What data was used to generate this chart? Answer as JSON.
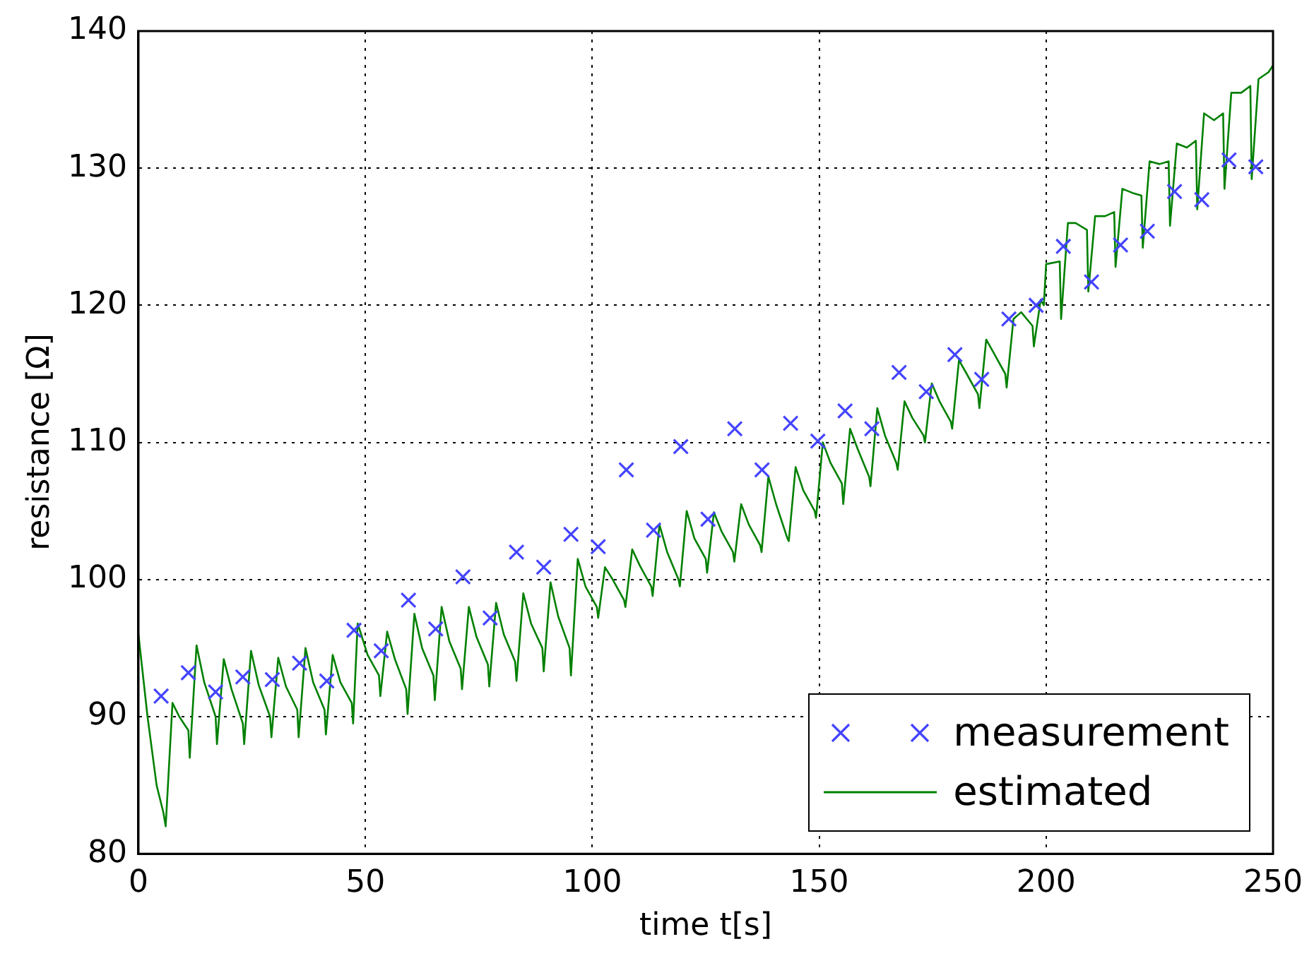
{
  "chart_data": {
    "type": "scatter",
    "xlabel": "time t[s]",
    "ylabel": "resistance [Ω]",
    "xlim": [
      0,
      250
    ],
    "ylim": [
      80,
      140
    ],
    "xticks": [
      0,
      50,
      100,
      150,
      200,
      250
    ],
    "yticks": [
      80,
      90,
      100,
      110,
      120,
      130,
      140
    ],
    "grid": true,
    "legend": "bottom right",
    "x": [
      5,
      11,
      17,
      23,
      29.5,
      35.5,
      41.5,
      47.5,
      53.5,
      59.5,
      65.5,
      71.5,
      77.5,
      83.3,
      89.3,
      95.3,
      101.3,
      107.5,
      113.5,
      119.5,
      125.5,
      131.4,
      137.4,
      143.7,
      149.7,
      155.7,
      161.6,
      167.6,
      173.6,
      179.9,
      185.8,
      191.8,
      197.8,
      203.8,
      210,
      216.4,
      222.3,
      228.3,
      234.3,
      240.3,
      246.2
    ],
    "series": [
      {
        "name": "measurement",
        "marker": "cross",
        "color": "#4444ff",
        "values": [
          91.5,
          93.2,
          91.8,
          92.9,
          92.7,
          93.9,
          92.6,
          96.3,
          94.8,
          98.5,
          96.4,
          100.2,
          97.2,
          102.0,
          100.9,
          103.3,
          102.4,
          108.0,
          103.6,
          109.7,
          104.4,
          111.0,
          108.0,
          111.4,
          110.1,
          112.3,
          111.0,
          115.1,
          113.7,
          116.4,
          114.6,
          119.0,
          120.0,
          124.3,
          121.7,
          124.4,
          125.4,
          128.3,
          127.7,
          130.6,
          130.1
        ]
      },
      {
        "name": "estimated",
        "type": "line",
        "marker": "none",
        "line_style": "solid",
        "color": "#008000",
        "x": [
          0,
          2,
          4,
          5.5,
          6,
          7.5,
          9,
          11,
          11.3,
          12.8,
          14.5,
          17,
          17.3,
          18.8,
          20.5,
          23,
          23.3,
          24.8,
          26.5,
          29,
          29.3,
          30.8,
          32.5,
          35,
          35.3,
          36.8,
          38.5,
          41,
          41.3,
          42.8,
          44.5,
          47,
          47.3,
          48.3,
          50.5,
          53,
          53.3,
          54.8,
          56.5,
          59,
          59.3,
          60.8,
          62.5,
          65,
          65.3,
          66.8,
          68.5,
          71,
          71.3,
          72.8,
          74.5,
          77,
          77.3,
          78.8,
          80.5,
          83,
          83.3,
          84.8,
          86.5,
          89,
          89.3,
          90.8,
          92.5,
          95,
          95.3,
          96.8,
          98.5,
          101,
          101.3,
          102.8,
          104.5,
          107,
          107.3,
          108.8,
          110.5,
          113,
          113.3,
          114.8,
          116.5,
          119,
          119.3,
          120.8,
          122.5,
          125,
          125.3,
          126.8,
          128.5,
          131,
          131.3,
          132.8,
          134.5,
          137,
          137.3,
          138.8,
          140.5,
          143,
          143.3,
          144.8,
          146.5,
          149,
          149.3,
          150.8,
          152.5,
          155,
          155.3,
          156.8,
          158.5,
          161,
          161.3,
          162.8,
          164.5,
          167,
          167.3,
          168.8,
          170.5,
          173,
          173.3,
          174.8,
          176.5,
          179,
          179.3,
          180.8,
          182.5,
          185,
          185.3,
          186.8,
          188.5,
          191,
          191.3,
          192.8,
          194.5,
          197,
          197.3,
          198.8,
          199.5,
          200,
          203,
          203.3,
          204.8,
          206.5,
          209,
          209.3,
          210.8,
          213,
          215,
          215.3,
          216.8,
          219,
          221,
          221.3,
          222.8,
          225,
          227,
          227.3,
          228.8,
          231,
          233,
          233.3,
          234.8,
          237,
          239,
          239.3,
          240.8,
          243,
          245,
          245.3,
          246.8,
          249,
          250
        ],
        "values": [
          96,
          90,
          85,
          83,
          82,
          91,
          90,
          89,
          87,
          95.2,
          92.5,
          90,
          88,
          94.2,
          92,
          89.5,
          88,
          94.8,
          92.3,
          90,
          88.5,
          94.3,
          92.2,
          90.5,
          88.5,
          95,
          92.5,
          90.5,
          88.7,
          94.5,
          92.5,
          91,
          89.5,
          96.8,
          94.5,
          93,
          91.5,
          96.2,
          94.2,
          92,
          90.2,
          97.5,
          95,
          93,
          91.2,
          98,
          95.5,
          93.5,
          92,
          98,
          95.8,
          93.8,
          92.2,
          98.3,
          96,
          94,
          92.6,
          99,
          96.8,
          95,
          93.3,
          99.8,
          97.3,
          95,
          93,
          101.5,
          99.5,
          98,
          97.2,
          100.9,
          100,
          98.5,
          98,
          102.2,
          101,
          99.5,
          98.8,
          104,
          102,
          100,
          99.5,
          105,
          103,
          101.5,
          100.5,
          104.9,
          103.5,
          102,
          101.3,
          105.5,
          104,
          102.5,
          102,
          107.5,
          105.5,
          103,
          102.8,
          108.2,
          106.5,
          105,
          104.5,
          110,
          108.5,
          107,
          105.5,
          111,
          109.5,
          107.5,
          106.8,
          112.5,
          110.5,
          108.5,
          108,
          113,
          111.8,
          110.5,
          110,
          114.3,
          113,
          111.5,
          111,
          116,
          115,
          113.5,
          112.5,
          117.5,
          116.5,
          115,
          114,
          119,
          119.5,
          118.5,
          117,
          120.4,
          120,
          123,
          123.2,
          119,
          126,
          126,
          125.5,
          121,
          126.5,
          126.5,
          126.8,
          122.8,
          128.5,
          128.2,
          128,
          124.2,
          130.5,
          130.3,
          130.5,
          125.8,
          131.8,
          131.5,
          132,
          127,
          134,
          133.5,
          134,
          128.5,
          135.5,
          135.5,
          136,
          129.2,
          136.5,
          137,
          137.5
        ]
      }
    ]
  }
}
